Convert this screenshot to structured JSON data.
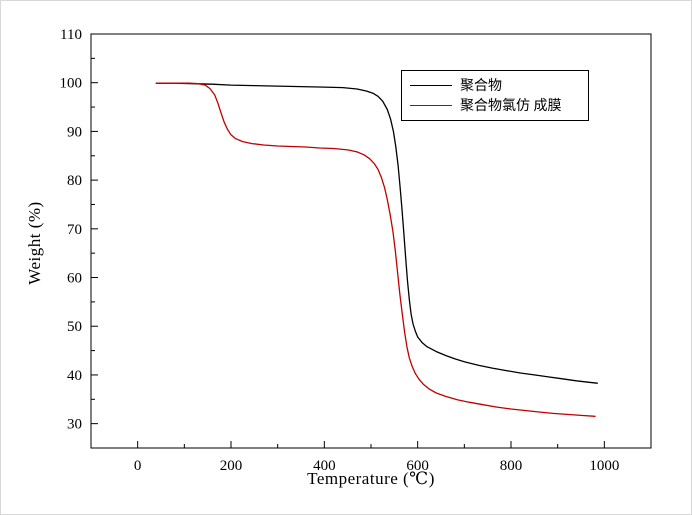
{
  "chart_data": {
    "type": "line",
    "title": "",
    "xlabel": "Temperature (℃)",
    "ylabel": "Weight (%)",
    "xlim": [
      -100,
      1100
    ],
    "ylim": [
      25,
      110
    ],
    "xticks": [
      0,
      200,
      400,
      600,
      800,
      1000
    ],
    "yticks": [
      30,
      40,
      50,
      60,
      70,
      80,
      90,
      100,
      110
    ],
    "x_minor_step": 100,
    "y_minor_step": 5,
    "grid": false,
    "legend_position": "upper-center-right",
    "series": [
      {
        "name": "聚合物",
        "color": "#000000",
        "points": [
          [
            40,
            99.9
          ],
          [
            80,
            99.9
          ],
          [
            120,
            99.8
          ],
          [
            160,
            99.7
          ],
          [
            200,
            99.5
          ],
          [
            250,
            99.4
          ],
          [
            300,
            99.3
          ],
          [
            350,
            99.2
          ],
          [
            400,
            99.1
          ],
          [
            440,
            99.0
          ],
          [
            470,
            98.7
          ],
          [
            490,
            98.3
          ],
          [
            505,
            97.8
          ],
          [
            515,
            97.2
          ],
          [
            525,
            96.2
          ],
          [
            535,
            94.5
          ],
          [
            542,
            92.5
          ],
          [
            548,
            90.0
          ],
          [
            553,
            87.0
          ],
          [
            558,
            83.0
          ],
          [
            562,
            79.0
          ],
          [
            566,
            74.5
          ],
          [
            570,
            69.5
          ],
          [
            574,
            64.5
          ],
          [
            578,
            59.5
          ],
          [
            582,
            55.5
          ],
          [
            586,
            52.5
          ],
          [
            590,
            50.5
          ],
          [
            595,
            49.0
          ],
          [
            600,
            47.8
          ],
          [
            610,
            46.6
          ],
          [
            620,
            45.8
          ],
          [
            640,
            44.8
          ],
          [
            660,
            44.0
          ],
          [
            680,
            43.3
          ],
          [
            700,
            42.7
          ],
          [
            730,
            42.0
          ],
          [
            760,
            41.4
          ],
          [
            790,
            40.9
          ],
          [
            820,
            40.4
          ],
          [
            850,
            40.0
          ],
          [
            880,
            39.6
          ],
          [
            910,
            39.2
          ],
          [
            940,
            38.8
          ],
          [
            965,
            38.5
          ],
          [
            985,
            38.3
          ]
        ]
      },
      {
        "name": "聚合物氯仿 成膜",
        "color": "#c00000",
        "points": [
          [
            40,
            99.9
          ],
          [
            80,
            99.9
          ],
          [
            110,
            99.9
          ],
          [
            130,
            99.8
          ],
          [
            145,
            99.5
          ],
          [
            155,
            98.8
          ],
          [
            165,
            97.5
          ],
          [
            172,
            95.8
          ],
          [
            178,
            94.0
          ],
          [
            185,
            92.0
          ],
          [
            192,
            90.5
          ],
          [
            200,
            89.3
          ],
          [
            210,
            88.5
          ],
          [
            225,
            87.9
          ],
          [
            245,
            87.5
          ],
          [
            270,
            87.2
          ],
          [
            300,
            87.0
          ],
          [
            330,
            86.9
          ],
          [
            360,
            86.8
          ],
          [
            390,
            86.6
          ],
          [
            420,
            86.5
          ],
          [
            450,
            86.2
          ],
          [
            470,
            85.8
          ],
          [
            485,
            85.2
          ],
          [
            497,
            84.4
          ],
          [
            507,
            83.4
          ],
          [
            515,
            82.2
          ],
          [
            522,
            80.6
          ],
          [
            529,
            78.5
          ],
          [
            535,
            76.0
          ],
          [
            541,
            73.0
          ],
          [
            547,
            69.5
          ],
          [
            552,
            65.5
          ],
          [
            557,
            61.0
          ],
          [
            562,
            56.5
          ],
          [
            567,
            52.5
          ],
          [
            572,
            48.8
          ],
          [
            577,
            45.8
          ],
          [
            582,
            43.5
          ],
          [
            588,
            41.8
          ],
          [
            595,
            40.3
          ],
          [
            603,
            39.1
          ],
          [
            612,
            38.1
          ],
          [
            625,
            37.1
          ],
          [
            640,
            36.3
          ],
          [
            660,
            35.6
          ],
          [
            685,
            34.9
          ],
          [
            710,
            34.4
          ],
          [
            740,
            33.9
          ],
          [
            770,
            33.4
          ],
          [
            800,
            33.0
          ],
          [
            830,
            32.7
          ],
          [
            860,
            32.4
          ],
          [
            890,
            32.1
          ],
          [
            920,
            31.9
          ],
          [
            950,
            31.7
          ],
          [
            980,
            31.5
          ]
        ]
      }
    ]
  },
  "colors": {
    "axis": "#000000",
    "background": "#ffffff"
  }
}
